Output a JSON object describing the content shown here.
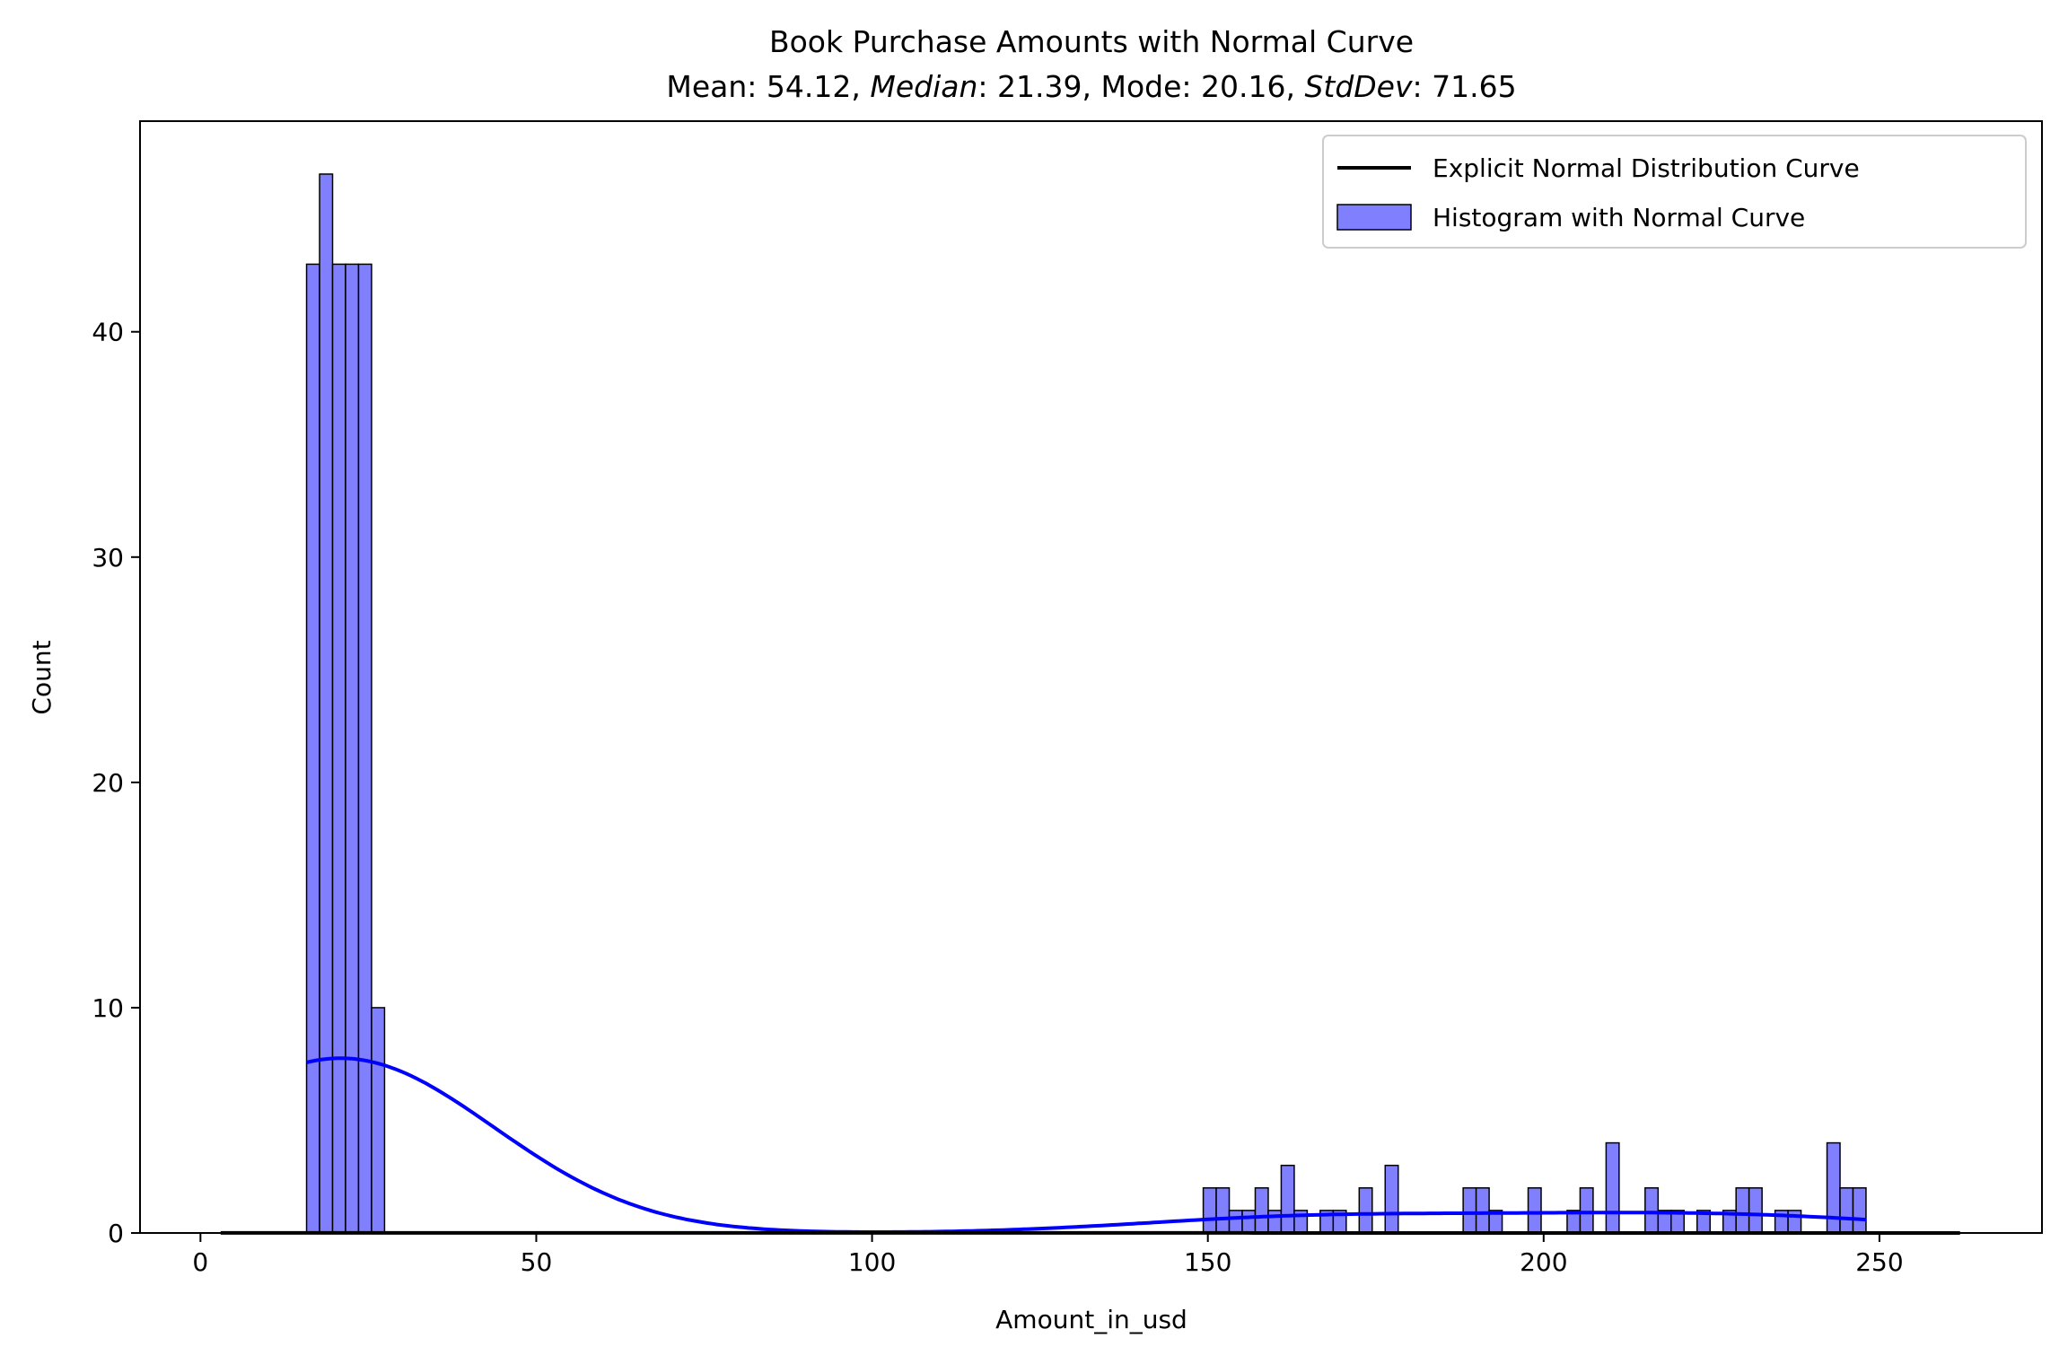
{
  "chart_data": {
    "type": "bar",
    "title": "Book Purchase Amounts with Normal Curve",
    "subtitle_segments": [
      {
        "text": "Mean: 54.12, ",
        "italic": false
      },
      {
        "text": "Median",
        "italic": true
      },
      {
        "text": ": 21.39, Mode: 20.16, ",
        "italic": false
      },
      {
        "text": "StdDev",
        "italic": true
      },
      {
        "text": ": 71.65",
        "italic": false
      }
    ],
    "xlabel": "Amount_in_usd",
    "ylabel": "Count",
    "xlim": [
      -9,
      274.2
    ],
    "ylim": [
      0,
      49.35
    ],
    "xticks": [
      0,
      50,
      100,
      150,
      200,
      250
    ],
    "yticks": [
      0,
      10,
      20,
      30,
      40
    ],
    "grid": false,
    "legend_position": "top-right",
    "legend": [
      {
        "label": "Explicit Normal Distribution Curve",
        "type": "line",
        "color": "#000000"
      },
      {
        "label": "Histogram with Normal Curve",
        "type": "patch",
        "color": "#8080ff"
      }
    ],
    "histogram": {
      "bin_start": 15.8,
      "bin_width": 1.935,
      "num_bins": 120,
      "nonzero_counts": {
        "0": 43,
        "1": 47,
        "2": 43,
        "3": 43,
        "4": 43,
        "5": 10,
        "69": 2,
        "70": 2,
        "71": 1,
        "72": 1,
        "73": 2,
        "74": 1,
        "75": 3,
        "76": 1,
        "78": 1,
        "79": 1,
        "81": 2,
        "83": 3,
        "89": 2,
        "90": 2,
        "91": 1,
        "94": 2,
        "97": 1,
        "98": 2,
        "100": 4,
        "103": 2,
        "104": 1,
        "105": 1,
        "107": 1,
        "109": 1,
        "110": 2,
        "111": 2,
        "113": 1,
        "114": 1,
        "117": 4,
        "118": 2,
        "119": 2
      },
      "fill_color": "#8080ff",
      "edge_color": "#000000"
    },
    "kde": {
      "color": "#0000ff",
      "bandwidth": 22.6
    },
    "normal_curve": {
      "mean": 54.12,
      "std": 71.65,
      "x_range": [
        3,
        262
      ],
      "color": "#000000"
    }
  }
}
